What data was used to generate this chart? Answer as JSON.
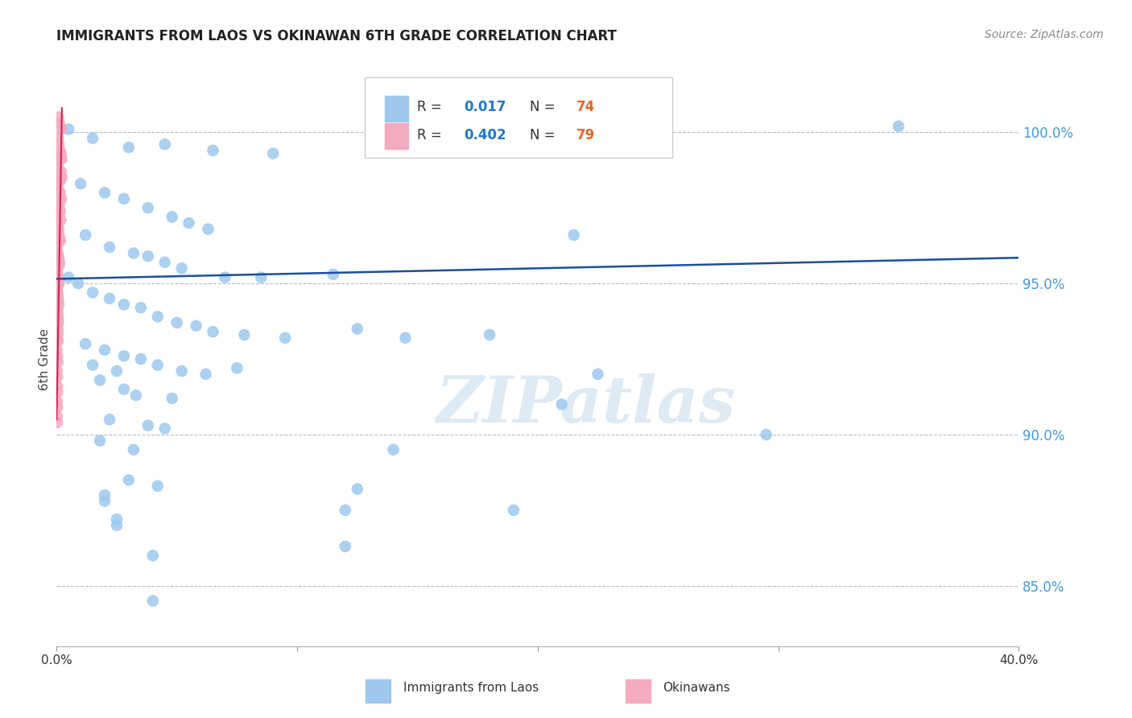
{
  "title": "IMMIGRANTS FROM LAOS VS OKINAWAN 6TH GRADE CORRELATION CHART",
  "source": "Source: ZipAtlas.com",
  "ylabel": "6th Grade",
  "xlim": [
    0.0,
    40.0
  ],
  "ylim": [
    83.0,
    102.0
  ],
  "yticks": [
    85.0,
    90.0,
    95.0,
    100.0
  ],
  "ytick_labels": [
    "85.0%",
    "90.0%",
    "95.0%",
    "100.0%"
  ],
  "xtick_labels": [
    "0.0%",
    "",
    "",
    "",
    "40.0%"
  ],
  "blue_color": "#9EC8EE",
  "pink_color": "#F4AABF",
  "trend_blue_color": "#1B4F9B",
  "background_color": "#ffffff",
  "watermark": "ZIPatlas",
  "blue_scatter": [
    [
      0.5,
      100.1
    ],
    [
      1.5,
      99.8
    ],
    [
      3.0,
      99.5
    ],
    [
      4.5,
      99.6
    ],
    [
      6.5,
      99.4
    ],
    [
      9.0,
      99.3
    ],
    [
      35.0,
      100.2
    ],
    [
      1.0,
      98.3
    ],
    [
      2.0,
      98.0
    ],
    [
      2.8,
      97.8
    ],
    [
      3.8,
      97.5
    ],
    [
      4.8,
      97.2
    ],
    [
      5.5,
      97.0
    ],
    [
      6.3,
      96.8
    ],
    [
      1.2,
      96.6
    ],
    [
      2.2,
      96.2
    ],
    [
      3.2,
      96.0
    ],
    [
      3.8,
      95.9
    ],
    [
      4.5,
      95.7
    ],
    [
      5.2,
      95.5
    ],
    [
      7.0,
      95.2
    ],
    [
      8.5,
      95.2
    ],
    [
      11.5,
      95.3
    ],
    [
      0.5,
      95.2
    ],
    [
      0.9,
      95.0
    ],
    [
      1.5,
      94.7
    ],
    [
      2.2,
      94.5
    ],
    [
      2.8,
      94.3
    ],
    [
      3.5,
      94.2
    ],
    [
      4.2,
      93.9
    ],
    [
      5.0,
      93.7
    ],
    [
      5.8,
      93.6
    ],
    [
      6.5,
      93.4
    ],
    [
      7.8,
      93.3
    ],
    [
      9.5,
      93.2
    ],
    [
      12.5,
      93.5
    ],
    [
      14.5,
      93.2
    ],
    [
      1.2,
      93.0
    ],
    [
      2.0,
      92.8
    ],
    [
      2.8,
      92.6
    ],
    [
      3.5,
      92.5
    ],
    [
      4.2,
      92.3
    ],
    [
      5.2,
      92.1
    ],
    [
      6.2,
      92.0
    ],
    [
      7.5,
      92.2
    ],
    [
      1.8,
      91.8
    ],
    [
      2.8,
      91.5
    ],
    [
      3.3,
      91.3
    ],
    [
      4.8,
      91.2
    ],
    [
      2.2,
      90.5
    ],
    [
      3.8,
      90.3
    ],
    [
      4.5,
      90.2
    ],
    [
      1.8,
      89.8
    ],
    [
      3.2,
      89.5
    ],
    [
      14.0,
      89.5
    ],
    [
      22.5,
      92.0
    ],
    [
      1.5,
      92.3
    ],
    [
      2.5,
      92.1
    ],
    [
      3.0,
      88.5
    ],
    [
      4.2,
      88.3
    ],
    [
      2.0,
      87.8
    ],
    [
      12.0,
      87.5
    ],
    [
      2.5,
      87.2
    ],
    [
      2.0,
      88.0
    ],
    [
      12.5,
      88.2
    ],
    [
      2.5,
      87.0
    ],
    [
      4.0,
      86.0
    ],
    [
      12.0,
      86.3
    ],
    [
      4.0,
      84.5
    ],
    [
      21.5,
      96.6
    ],
    [
      18.0,
      93.3
    ],
    [
      21.0,
      91.0
    ],
    [
      29.5,
      90.0
    ],
    [
      19.0,
      87.5
    ]
  ],
  "pink_scatter": [
    [
      0.08,
      100.5
    ],
    [
      0.12,
      100.3
    ],
    [
      0.18,
      100.1
    ],
    [
      0.06,
      99.8
    ],
    [
      0.09,
      99.6
    ],
    [
      0.13,
      99.4
    ],
    [
      0.17,
      99.2
    ],
    [
      0.04,
      99.0
    ],
    [
      0.07,
      98.8
    ],
    [
      0.11,
      98.6
    ],
    [
      0.15,
      98.4
    ],
    [
      0.03,
      98.2
    ],
    [
      0.05,
      98.0
    ],
    [
      0.08,
      97.8
    ],
    [
      0.11,
      97.6
    ],
    [
      0.15,
      97.4
    ],
    [
      0.03,
      97.2
    ],
    [
      0.06,
      97.0
    ],
    [
      0.09,
      96.8
    ],
    [
      0.12,
      96.5
    ],
    [
      0.03,
      96.3
    ],
    [
      0.05,
      96.0
    ],
    [
      0.08,
      95.8
    ],
    [
      0.1,
      95.6
    ],
    [
      0.03,
      95.4
    ],
    [
      0.05,
      95.2
    ],
    [
      0.07,
      95.0
    ],
    [
      0.02,
      94.8
    ],
    [
      0.04,
      94.6
    ],
    [
      0.06,
      94.4
    ],
    [
      0.02,
      94.2
    ],
    [
      0.04,
      94.0
    ],
    [
      0.06,
      93.8
    ],
    [
      0.02,
      93.5
    ],
    [
      0.04,
      93.3
    ],
    [
      0.06,
      93.1
    ],
    [
      0.02,
      92.8
    ],
    [
      0.03,
      92.6
    ],
    [
      0.05,
      92.4
    ],
    [
      0.02,
      92.1
    ],
    [
      0.03,
      91.9
    ],
    [
      0.02,
      91.6
    ],
    [
      0.03,
      91.4
    ],
    [
      0.02,
      91.1
    ],
    [
      0.03,
      90.9
    ],
    [
      0.02,
      90.6
    ],
    [
      0.03,
      90.4
    ],
    [
      0.02,
      98.5
    ],
    [
      0.03,
      98.3
    ],
    [
      0.06,
      98.1
    ],
    [
      0.02,
      97.5
    ],
    [
      0.04,
      97.3
    ],
    [
      0.02,
      96.9
    ],
    [
      0.04,
      96.7
    ],
    [
      0.02,
      96.2
    ],
    [
      0.04,
      95.95
    ],
    [
      0.02,
      95.5
    ],
    [
      0.04,
      95.3
    ],
    [
      0.02,
      94.9
    ],
    [
      0.04,
      94.7
    ],
    [
      0.02,
      94.3
    ],
    [
      0.04,
      94.1
    ],
    [
      0.02,
      93.7
    ],
    [
      0.04,
      93.5
    ],
    [
      0.02,
      93.2
    ],
    [
      0.18,
      99.3
    ],
    [
      0.2,
      99.1
    ],
    [
      0.18,
      98.7
    ],
    [
      0.22,
      98.5
    ],
    [
      0.15,
      98.0
    ],
    [
      0.2,
      97.8
    ],
    [
      0.12,
      97.3
    ],
    [
      0.17,
      97.1
    ],
    [
      0.1,
      96.6
    ],
    [
      0.15,
      96.4
    ],
    [
      0.08,
      95.9
    ],
    [
      0.12,
      95.7
    ],
    [
      0.07,
      95.2
    ],
    [
      0.1,
      95.0
    ],
    [
      0.06,
      94.5
    ],
    [
      0.09,
      94.3
    ],
    [
      0.05,
      93.9
    ],
    [
      0.07,
      93.7
    ],
    [
      0.04,
      93.4
    ]
  ],
  "blue_trend_x": [
    0.0,
    40.0
  ],
  "blue_trend_y": [
    95.15,
    95.85
  ],
  "pink_trend_x": [
    0.0,
    0.22
  ],
  "pink_trend_y": [
    90.5,
    100.8
  ]
}
